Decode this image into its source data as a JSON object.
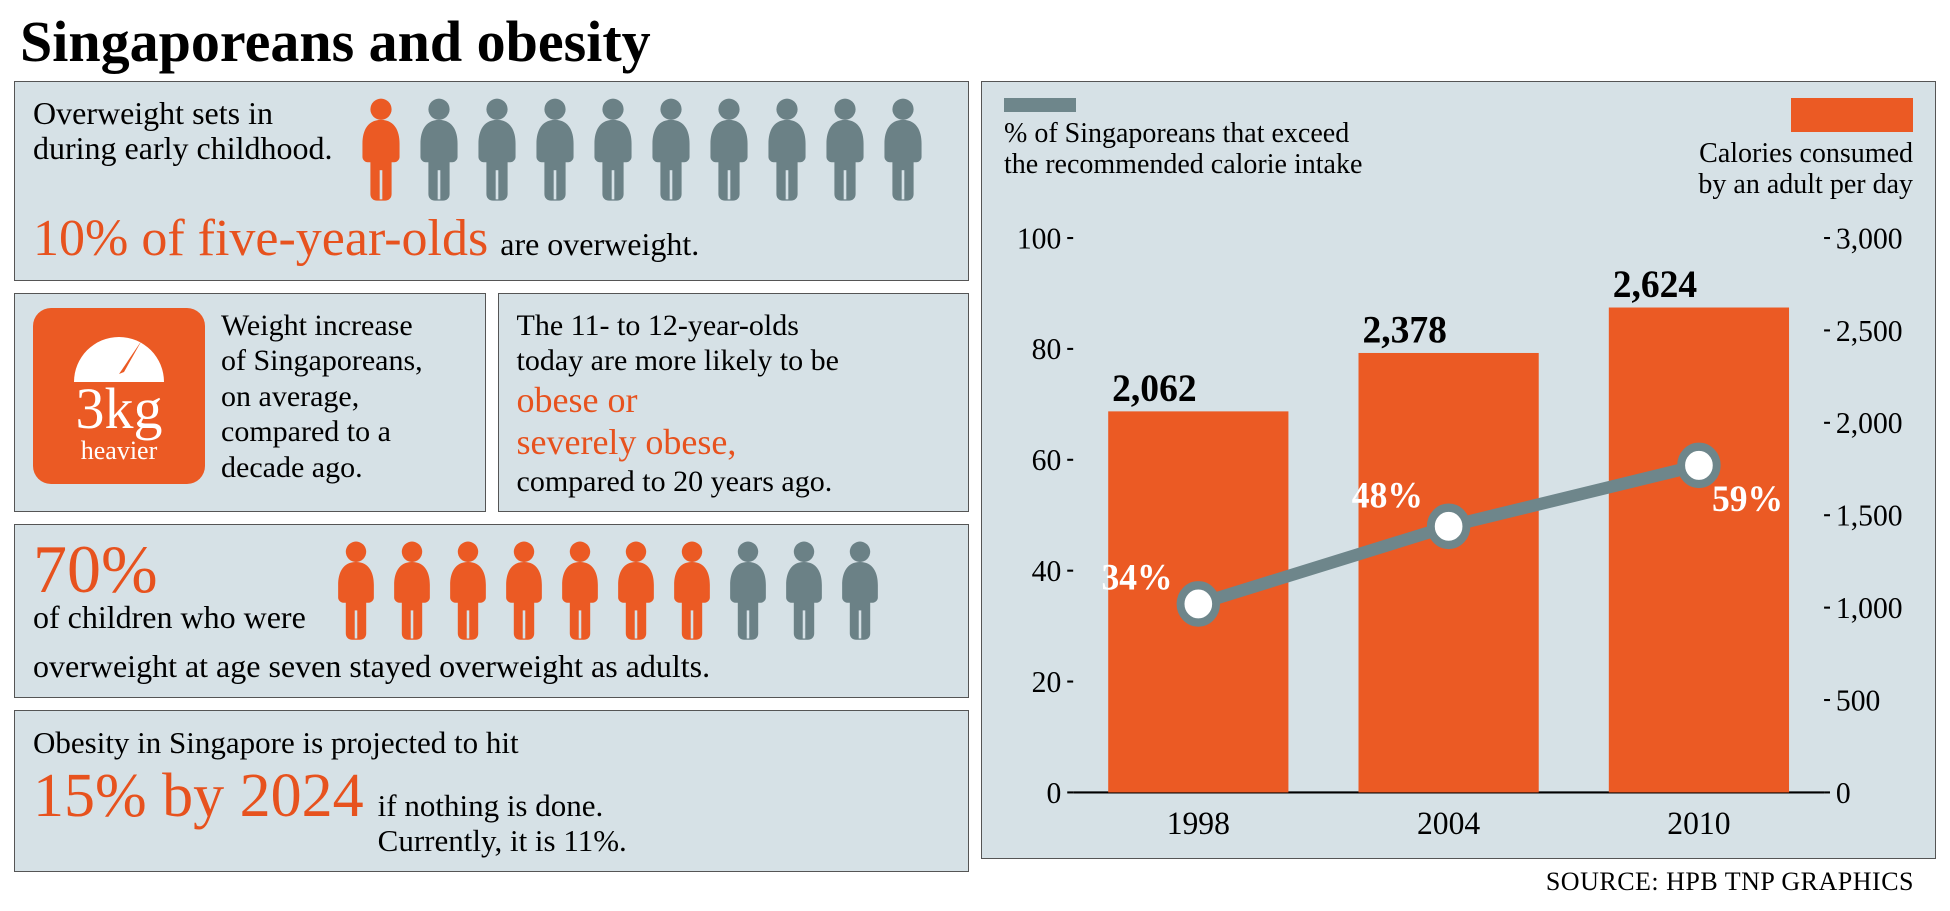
{
  "title": {
    "text": "Singaporeans and obesity",
    "fontsize": 58
  },
  "colors": {
    "accent": "#e7521e",
    "accent_fill": "#eb5a24",
    "panel_bg": "#d6e1e6",
    "grey_icon": "#6b8186",
    "line": "#6e868b",
    "text": "#000000",
    "white": "#ffffff"
  },
  "sec1": {
    "intro": "Overweight sets in\nduring early childhood.",
    "intro_fontsize": 32,
    "stat": "10% of five-year-olds",
    "stat_fontsize": 52,
    "suffix": "are overweight.",
    "suffix_fontsize": 32,
    "icons": {
      "total": 10,
      "highlighted": 1
    }
  },
  "sec2a": {
    "badge_value": "3kg",
    "badge_sub": "heavier",
    "text": "Weight increase\nof Singaporeans,\non average,\ncompared to a\ndecade ago.",
    "text_fontsize": 30
  },
  "sec2b": {
    "line1": "The 11- to 12-year-olds\ntoday are more likely to be",
    "accent": "obese or\nseverely obese,",
    "line2": "compared to 20 years ago.",
    "fontsize": 30,
    "accent_fontsize": 36
  },
  "sec3": {
    "stat": "70%",
    "stat_fontsize": 68,
    "line1": "of children who were",
    "line2": "overweight at age seven stayed overweight as adults.",
    "text_fontsize": 32,
    "icons": {
      "total": 10,
      "highlighted": 7
    }
  },
  "sec4": {
    "line1": "Obesity in Singapore is projected to hit",
    "stat": "15% by 2024",
    "stat_fontsize": 62,
    "rest": "if nothing is done.\nCurrently, it is 11%.",
    "text_fontsize": 31
  },
  "chart": {
    "legend_line": "% of Singaporeans that exceed\nthe recommended calorie intake",
    "legend_bar": "Calories consumed\nby an adult per day",
    "legend_fontsize": 28,
    "years": [
      "1998",
      "2004",
      "2010"
    ],
    "bar_values": [
      2062,
      2378,
      2624
    ],
    "bar_labels": [
      "2,062",
      "2,378",
      "2,624"
    ],
    "line_values": [
      34,
      48,
      59
    ],
    "line_labels": [
      "34%",
      "48%",
      "59%"
    ],
    "left_axis": {
      "min": 0,
      "max": 100,
      "step": 20,
      "label_fontsize": 30
    },
    "right_axis": {
      "min": 0,
      "max": 3000,
      "step": 500,
      "labels": [
        "0",
        "500",
        "1,000",
        "1,500",
        "2,000",
        "2,500",
        "3,000"
      ],
      "label_fontsize": 30
    },
    "bar_color": "#eb5a24",
    "line_color": "#6e868b",
    "line_width": 12,
    "marker_radius": 18,
    "value_fontsize": 38,
    "pct_fontsize": 36,
    "year_fontsize": 32,
    "bar_width_ratio": 0.72
  },
  "source": {
    "text": "SOURCE: HPB   TNP GRAPHICS",
    "fontsize": 26
  }
}
